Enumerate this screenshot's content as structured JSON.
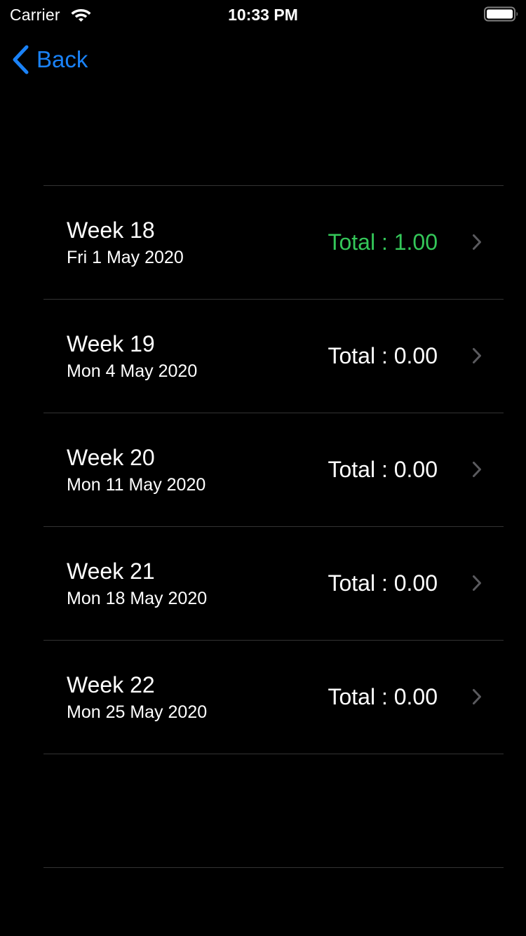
{
  "status_bar": {
    "carrier": "Carrier",
    "time": "10:33 PM",
    "wifi_icon": "wifi-icon",
    "battery_icon": "battery-icon"
  },
  "nav": {
    "back_label": "Back",
    "back_icon": "chevron-left-icon"
  },
  "colors": {
    "accent_blue": "#1a82f7",
    "positive_green": "#34c759",
    "separator": "#333333",
    "chevron": "#5a5a5e"
  },
  "weeks": [
    {
      "title": "Week 18",
      "date": "Fri 1 May 2020",
      "total": "Total : 1.00",
      "highlight": true
    },
    {
      "title": "Week 19",
      "date": "Mon 4 May 2020",
      "total": "Total : 0.00",
      "highlight": false
    },
    {
      "title": "Week 20",
      "date": "Mon 11 May 2020",
      "total": "Total : 0.00",
      "highlight": false
    },
    {
      "title": "Week 21",
      "date": "Mon 18 May 2020",
      "total": "Total : 0.00",
      "highlight": false
    },
    {
      "title": "Week 22",
      "date": "Mon 25 May 2020",
      "total": "Total : 0.00",
      "highlight": false
    }
  ]
}
